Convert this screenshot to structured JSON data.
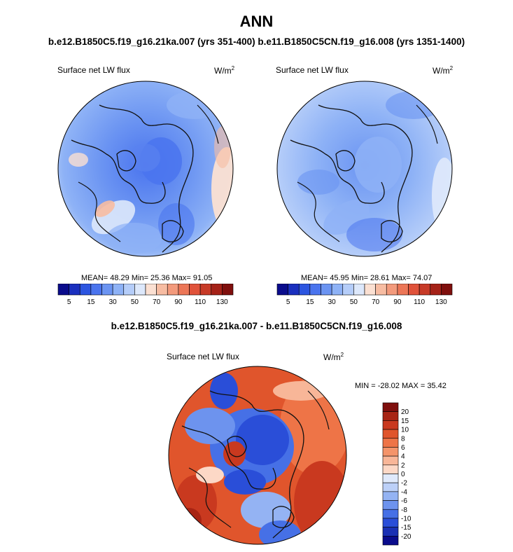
{
  "title": "ANN",
  "subtitle": "b.e12.B1850C5.f19_g16.21ka.007 (yrs 351-400) b.e11.B1850C5CN.f19_g16.008 (yrs 1351-1400)",
  "diff_title": "b.e12.B1850C5.f19_g16.21ka.007 - b.e11.B1850C5CN.f19_g16.008",
  "panel_variable": "Surface net LW flux",
  "units_base": "W/m",
  "units_exp": "2",
  "chart_data": [
    {
      "type": "heatmap",
      "projection": "north polar stereographic",
      "title": "Surface net LW flux",
      "units": "W/m2",
      "stats": {
        "mean": 48.29,
        "min": 25.36,
        "max": 91.05
      },
      "stats_text": "MEAN=  48.29  Min=  25.36  Max=  91.05",
      "colorbar_labels": [
        "5",
        "15",
        "30",
        "50",
        "70",
        "90",
        "110",
        "130"
      ],
      "colorbar_levels": [
        5,
        10,
        15,
        20,
        30,
        40,
        50,
        60,
        70,
        80,
        90,
        100,
        110,
        120,
        130
      ],
      "colorbar_colors": [
        "#0a0c8c",
        "#1a2fbe",
        "#2c55e0",
        "#4a74ee",
        "#6b94f2",
        "#8eb2f6",
        "#b5cdf9",
        "#dde8fb",
        "#fbe0d2",
        "#f7bca2",
        "#f39a7c",
        "#ec7657",
        "#e0523a",
        "#c73a27",
        "#a52218",
        "#7f0f0d"
      ]
    },
    {
      "type": "heatmap",
      "projection": "north polar stereographic",
      "title": "Surface net LW flux",
      "units": "W/m2",
      "stats": {
        "mean": 45.95,
        "min": 28.61,
        "max": 74.07
      },
      "stats_text": "MEAN=  45.95  Min=  28.61  Max=  74.07",
      "colorbar_labels": [
        "5",
        "15",
        "30",
        "50",
        "70",
        "90",
        "110",
        "130"
      ],
      "colorbar_levels": [
        5,
        10,
        15,
        20,
        30,
        40,
        50,
        60,
        70,
        80,
        90,
        100,
        110,
        120,
        130
      ],
      "colorbar_colors": [
        "#0a0c8c",
        "#1a2fbe",
        "#2c55e0",
        "#4a74ee",
        "#6b94f2",
        "#8eb2f6",
        "#b5cdf9",
        "#dde8fb",
        "#fbe0d2",
        "#f7bca2",
        "#f39a7c",
        "#ec7657",
        "#e0523a",
        "#c73a27",
        "#a52218",
        "#7f0f0d"
      ]
    },
    {
      "type": "heatmap",
      "projection": "north polar stereographic",
      "title": "Surface net LW flux",
      "units": "W/m2",
      "stats": {
        "min": -28.02,
        "max": 35.42
      },
      "stats_text": "MIN = -28.02 MAX =  35.42",
      "colorbar_labels": [
        "20",
        "15",
        "10",
        "8",
        "6",
        "4",
        "2",
        "0",
        "-2",
        "-4",
        "-6",
        "-8",
        "-10",
        "-15",
        "-20"
      ],
      "colorbar_colors": [
        "#7f0f0d",
        "#a82414",
        "#c9391f",
        "#e0552c",
        "#ee7447",
        "#f4946a",
        "#f8b698",
        "#fcd8c6",
        "#dfe9fb",
        "#bcd0f8",
        "#94b3f3",
        "#6d93ee",
        "#4670e6",
        "#2a4ed8",
        "#1a30b4",
        "#0a0c8c"
      ]
    }
  ]
}
